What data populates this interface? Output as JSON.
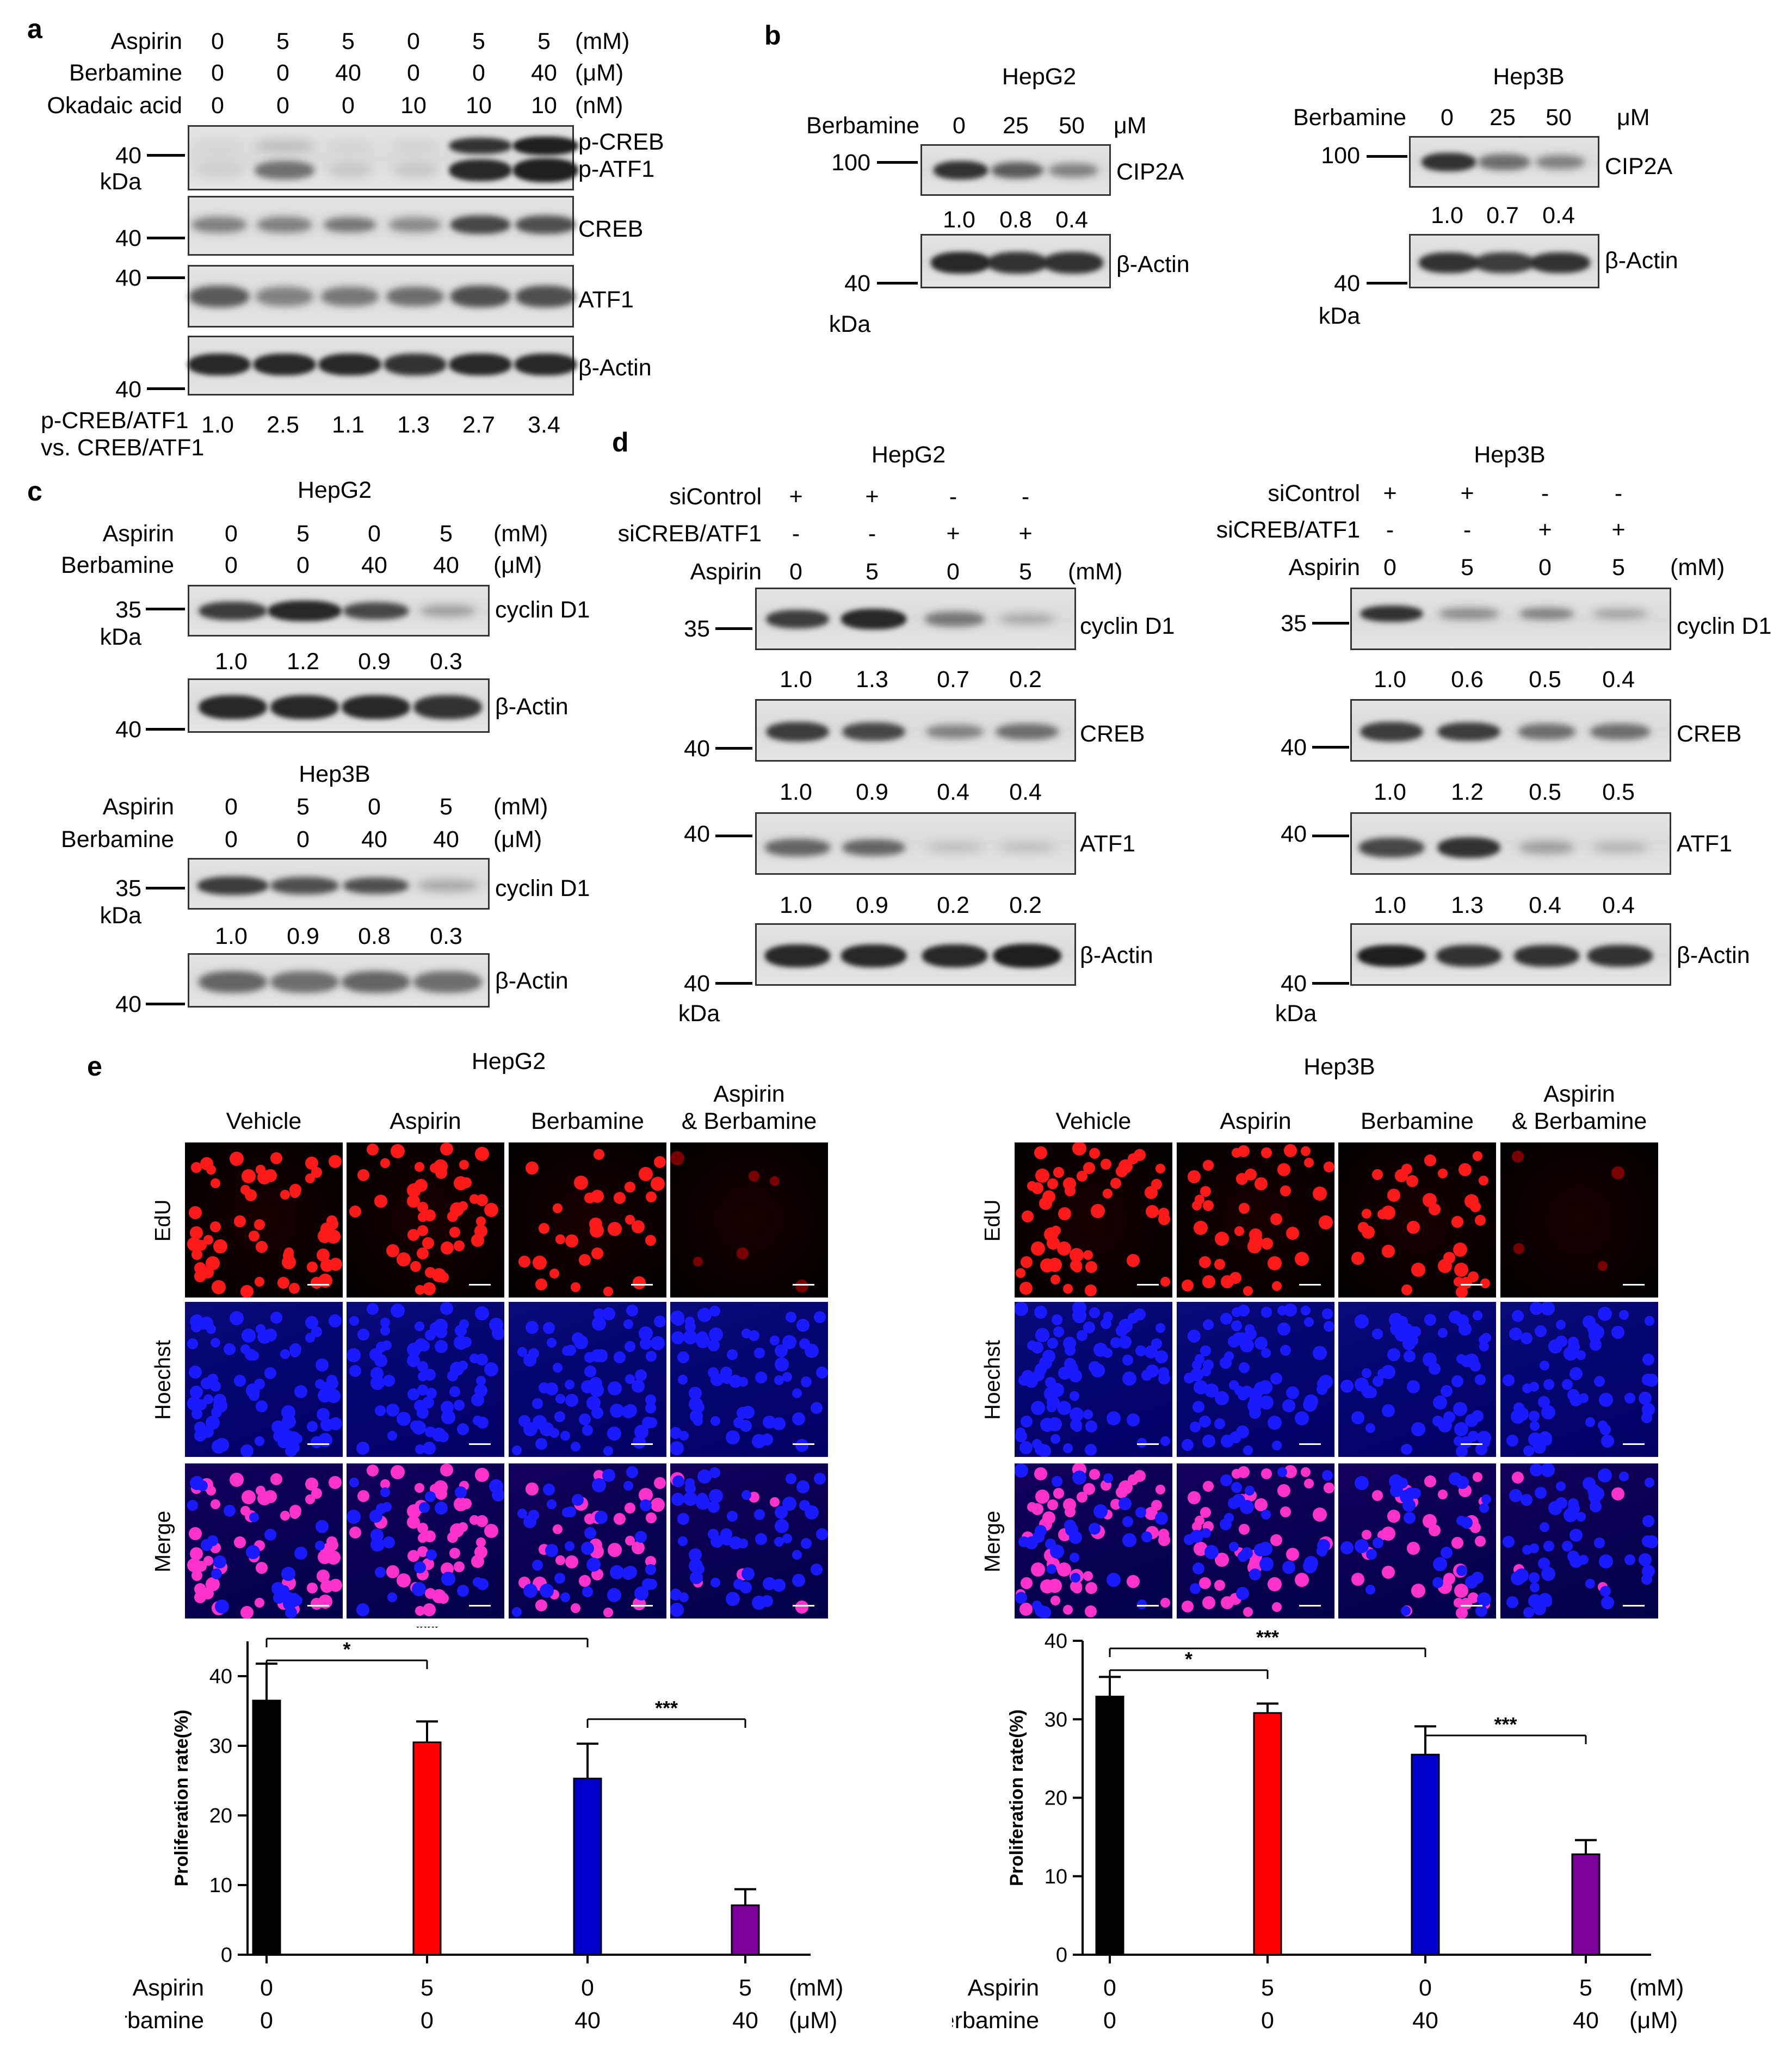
{
  "panel_labels": {
    "a": "a",
    "b": "b",
    "c": "c",
    "d": "d",
    "e": "e"
  },
  "units": {
    "mM": "(mM)",
    "uM": "(μM)",
    "nM": "(nM)",
    "kDa": "kDa",
    "uM_b": "μM"
  },
  "panel_a": {
    "row_labels": [
      "Aspirin",
      "Berbamine",
      "Okadaic acid"
    ],
    "rows": [
      [
        "0",
        "5",
        "5",
        "0",
        "5",
        "5"
      ],
      [
        "0",
        "0",
        "40",
        "0",
        "0",
        "40"
      ],
      [
        "0",
        "0",
        "0",
        "10",
        "10",
        "10"
      ]
    ],
    "markers": [
      "40",
      "40",
      "40",
      "40"
    ],
    "blot_labels": [
      "p-CREB",
      "p-ATF1",
      "CREB",
      "ATF1",
      "β-Actin"
    ],
    "ratio_label_1": "p-CREB/ATF1",
    "ratio_label_2": "vs. CREB/ATF1",
    "ratios": [
      "1.0",
      "2.5",
      "1.1",
      "1.3",
      "2.7",
      "3.4"
    ]
  },
  "panel_b": {
    "cells": [
      "HepG2",
      "Hep3B"
    ],
    "row_label": "Berbamine",
    "doses": [
      "0",
      "25",
      "50"
    ],
    "marker_100": "100",
    "marker_40": "40",
    "blot_labels": [
      "CIP2A",
      "β-Actin"
    ],
    "ratios_hepg2": [
      "1.0",
      "0.8",
      "0.4"
    ],
    "ratios_hep3b": [
      "1.0",
      "0.7",
      "0.4"
    ]
  },
  "panel_c": {
    "cells": [
      "HepG2",
      "Hep3B"
    ],
    "row_labels": [
      "Aspirin",
      "Berbamine"
    ],
    "aspirin": [
      "0",
      "5",
      "0",
      "5"
    ],
    "berbamine": [
      "0",
      "0",
      "40",
      "40"
    ],
    "marker_35": "35",
    "marker_40": "40",
    "blot_labels": [
      "cyclin D1",
      "β-Actin"
    ],
    "ratios_hepg2": [
      "1.0",
      "1.2",
      "0.9",
      "0.3"
    ],
    "ratios_hep3b": [
      "1.0",
      "0.9",
      "0.8",
      "0.3"
    ]
  },
  "panel_d": {
    "cells": [
      "HepG2",
      "Hep3B"
    ],
    "row_labels": [
      "siControl",
      "siCREB/ATF1",
      "Aspirin"
    ],
    "sicontrol": [
      "+",
      "+",
      "-",
      "-"
    ],
    "sicreb": [
      "-",
      "-",
      "+",
      "+"
    ],
    "aspirin": [
      "0",
      "5",
      "0",
      "5"
    ],
    "markers": [
      "35",
      "40",
      "40",
      "40"
    ],
    "blot_labels": [
      "cyclin D1",
      "CREB",
      "ATF1",
      "β-Actin"
    ],
    "hepg2_ratios": [
      [
        "1.0",
        "1.3",
        "0.7",
        "0.2"
      ],
      [
        "1.0",
        "0.9",
        "0.4",
        "0.4"
      ],
      [
        "1.0",
        "0.9",
        "0.2",
        "0.2"
      ]
    ],
    "hep3b_ratios": [
      [
        "1.0",
        "0.6",
        "0.5",
        "0.4"
      ],
      [
        "1.0",
        "1.2",
        "0.5",
        "0.5"
      ],
      [
        "1.0",
        "1.3",
        "0.4",
        "0.4"
      ]
    ]
  },
  "panel_e": {
    "cells": [
      "HepG2",
      "Hep3B"
    ],
    "columns": [
      "Vehicle",
      "Aspirin",
      "Berbamine",
      "Aspirin",
      "& Berbamine"
    ],
    "rows": [
      "EdU",
      "Hoechst",
      "Merge"
    ],
    "colors": {
      "edu": "#ff1a1a",
      "hoechst": "#1a1aff",
      "merge": "#ff33cc",
      "bar_black": "#000000",
      "bar_red": "#ff0000",
      "bar_blue": "#0000cc",
      "bar_purple": "#7a0099"
    }
  },
  "chart_data": [
    {
      "type": "bar",
      "title": "HepG2",
      "ylabel": "Proliferation rate(%)",
      "ylim": [
        0,
        45
      ],
      "yticks": [
        "0",
        "10",
        "20",
        "30",
        "40"
      ],
      "categories": [
        "0/0",
        "5/0",
        "0/40",
        "5/40"
      ],
      "values": [
        36.5,
        30.5,
        25.3,
        7.1
      ],
      "errors": [
        5.3,
        3.0,
        5.0,
        2.3
      ],
      "row_labels": [
        "Aspirin",
        "Berbamine"
      ],
      "aspirin": [
        "0",
        "5",
        "0",
        "5"
      ],
      "berbamine": [
        "0",
        "0",
        "40",
        "40"
      ],
      "significance": [
        {
          "from": 0,
          "to": 1,
          "label": "*"
        },
        {
          "from": 0,
          "to": 2,
          "label": "***"
        },
        {
          "from": 2,
          "to": 3,
          "label": "***"
        }
      ]
    },
    {
      "type": "bar",
      "title": "Hep3B",
      "ylabel": "Proliferation rate(%)",
      "ylim": [
        0,
        40
      ],
      "yticks": [
        "0",
        "10",
        "20",
        "30",
        "40"
      ],
      "categories": [
        "0/0",
        "5/0",
        "0/40",
        "5/40"
      ],
      "values": [
        32.9,
        30.8,
        25.5,
        12.8
      ],
      "errors": [
        2.5,
        1.2,
        3.6,
        1.8
      ],
      "row_labels": [
        "Aspirin",
        "Berbamine"
      ],
      "aspirin": [
        "0",
        "5",
        "0",
        "5"
      ],
      "berbamine": [
        "0",
        "0",
        "40",
        "40"
      ],
      "significance": [
        {
          "from": 0,
          "to": 1,
          "label": "*"
        },
        {
          "from": 0,
          "to": 2,
          "label": "***"
        },
        {
          "from": 2,
          "to": 3,
          "label": "***"
        }
      ]
    }
  ]
}
